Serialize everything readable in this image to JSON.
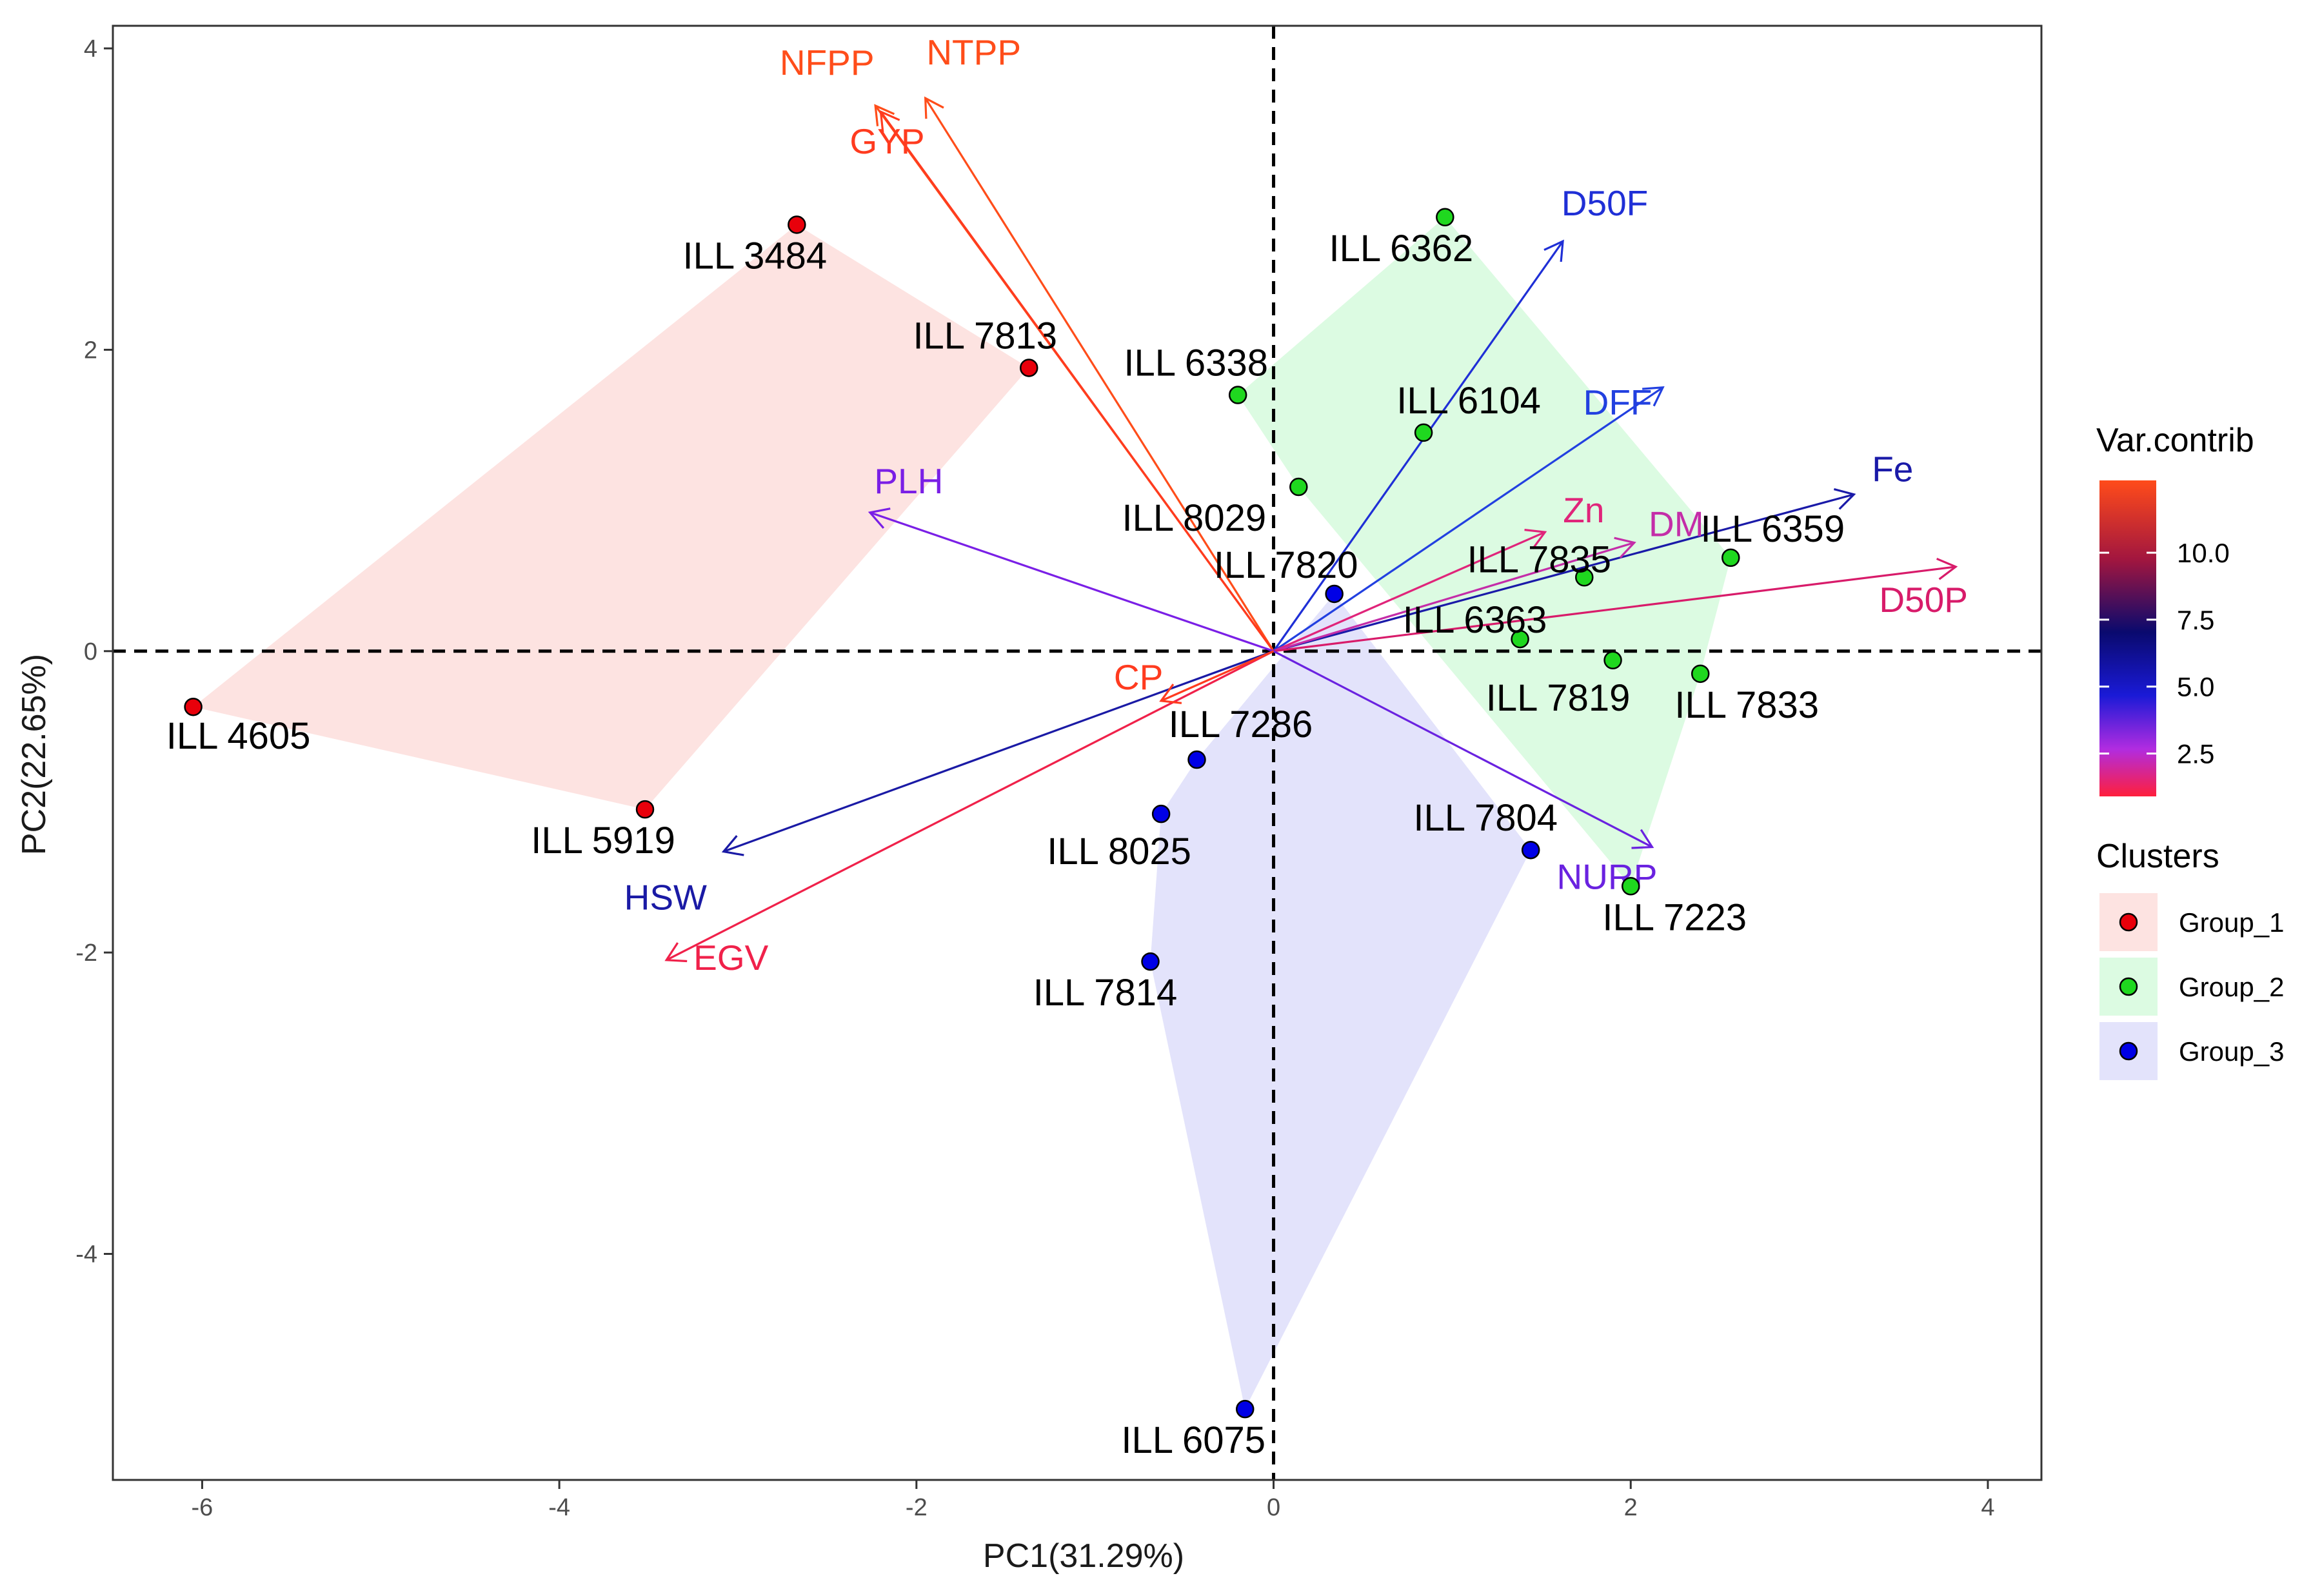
{
  "chart_data": {
    "type": "scatter",
    "subtype": "pca-biplot",
    "xlabel": "PC1(31.29%)",
    "ylabel": "PC2(22.65%)",
    "xlim": [
      -6.5,
      4.3
    ],
    "ylim": [
      -5.5,
      4.15
    ],
    "x_ticks": [
      -6,
      -4,
      -2,
      0,
      2,
      4
    ],
    "y_ticks": [
      -4,
      -2,
      0,
      2,
      4
    ],
    "tick_labels_x": [
      "-6",
      "-4",
      "-2",
      "0",
      "2",
      "4"
    ],
    "tick_labels_y": [
      "-4",
      "-2",
      "0",
      "2",
      "4"
    ],
    "reference_lines": [
      {
        "axis": "x",
        "value": 0,
        "style": "dashed"
      },
      {
        "axis": "y",
        "value": 0,
        "style": "dashed"
      }
    ],
    "groups": [
      {
        "name": "Group_1",
        "color": "#e8000b",
        "fill": "#fde3e1"
      },
      {
        "name": "Group_2",
        "color": "#1fd81f",
        "fill": "#dcfbe2"
      },
      {
        "name": "Group_3",
        "color": "#0000e6",
        "fill": "#e3e3fb"
      }
    ],
    "points": [
      {
        "label": "ILL 3484",
        "x": -2.67,
        "y": 2.83,
        "group": "Group_1"
      },
      {
        "label": "ILL 7813",
        "x": -1.37,
        "y": 1.88,
        "group": "Group_1"
      },
      {
        "label": "ILL 4605",
        "x": -6.05,
        "y": -0.37,
        "group": "Group_1"
      },
      {
        "label": "ILL 5919",
        "x": -3.52,
        "y": -1.05,
        "group": "Group_1"
      },
      {
        "label": "ILL 6362",
        "x": 0.96,
        "y": 2.88,
        "group": "Group_2"
      },
      {
        "label": "ILL 6338",
        "x": -0.2,
        "y": 1.7,
        "group": "Group_2"
      },
      {
        "label": "ILL 6104",
        "x": 0.84,
        "y": 1.45,
        "group": "Group_2"
      },
      {
        "label": "ILL 8029",
        "x": 0.14,
        "y": 1.09,
        "group": "Group_2"
      },
      {
        "label": "ILL 7835",
        "x": 1.74,
        "y": 0.49,
        "group": "Group_2"
      },
      {
        "label": "ILL 6359",
        "x": 2.56,
        "y": 0.62,
        "group": "Group_2"
      },
      {
        "label": "ILL 6363",
        "x": 1.38,
        "y": 0.08,
        "group": "Group_2"
      },
      {
        "label": "ILL 7819",
        "x": 1.9,
        "y": -0.06,
        "group": "Group_2"
      },
      {
        "label": "ILL 7833",
        "x": 2.39,
        "y": -0.15,
        "group": "Group_2"
      },
      {
        "label": "ILL 7223",
        "x": 2.0,
        "y": -1.56,
        "group": "Group_2"
      },
      {
        "label": "ILL 7820",
        "x": 0.34,
        "y": 0.38,
        "group": "Group_3"
      },
      {
        "label": "ILL 7286",
        "x": -0.43,
        "y": -0.72,
        "group": "Group_3"
      },
      {
        "label": "ILL 8025",
        "x": -0.63,
        "y": -1.08,
        "group": "Group_3"
      },
      {
        "label": "ILL 7804",
        "x": 1.44,
        "y": -1.32,
        "group": "Group_3"
      },
      {
        "label": "ILL 7814",
        "x": -0.69,
        "y": -2.06,
        "group": "Group_3"
      },
      {
        "label": "ILL 6075",
        "x": -0.16,
        "y": -5.03,
        "group": "Group_3"
      }
    ],
    "hulls": [
      {
        "group": "Group_1",
        "vertices": [
          "ILL 3484",
          "ILL 7813",
          "ILL 5919",
          "ILL 4605"
        ]
      },
      {
        "group": "Group_2",
        "vertices": [
          "ILL 6362",
          "ILL 6359",
          "ILL 7833",
          "ILL 7223",
          "ILL 8029",
          "ILL 6338"
        ]
      },
      {
        "group": "Group_3",
        "vertices": [
          "ILL 7820",
          "ILL 7804",
          "ILL 6075",
          "ILL 7814",
          "ILL 8025",
          "ILL 7286"
        ]
      }
    ],
    "variables": [
      {
        "name": "NFPP",
        "x": -2.23,
        "y": 3.62,
        "contrib": 12.4,
        "color": "#ff4d1a"
      },
      {
        "name": "NTPP",
        "x": -1.95,
        "y": 3.67,
        "contrib": 12.0,
        "color": "#ff4d1a"
      },
      {
        "name": "GYP",
        "x": -2.2,
        "y": 3.58,
        "contrib": 12.2,
        "color": "#ff3b1f"
      },
      {
        "name": "D50F",
        "x": 1.62,
        "y": 2.72,
        "contrib": 6.3,
        "color": "#1f2fd6"
      },
      {
        "name": "DFF",
        "x": 2.18,
        "y": 1.75,
        "contrib": 5.8,
        "color": "#2240e0"
      },
      {
        "name": "Fe",
        "x": 3.25,
        "y": 1.04,
        "contrib": 7.2,
        "color": "#1a1aa8"
      },
      {
        "name": "Zn",
        "x": 1.52,
        "y": 0.79,
        "contrib": 2.0,
        "color": "#e0247a"
      },
      {
        "name": "DM",
        "x": 2.02,
        "y": 0.72,
        "contrib": 3.0,
        "color": "#c42da8"
      },
      {
        "name": "D50P",
        "x": 3.82,
        "y": 0.56,
        "contrib": 3.2,
        "color": "#d81b6a"
      },
      {
        "name": "NURP",
        "x": 2.12,
        "y": -1.3,
        "contrib": 4.0,
        "color": "#6a22e0"
      },
      {
        "name": "PLH",
        "x": -2.26,
        "y": 0.92,
        "contrib": 4.2,
        "color": "#7a1fe6"
      },
      {
        "name": "HSW",
        "x": -3.08,
        "y": -1.33,
        "contrib": 7.6,
        "color": "#1a1aa5"
      },
      {
        "name": "EGV",
        "x": -3.4,
        "y": -2.05,
        "contrib": 1.5,
        "color": "#f0214a"
      },
      {
        "name": "CP",
        "x": -0.63,
        "y": -0.33,
        "contrib": 11.5,
        "color": "#ff3b1f"
      }
    ],
    "legend": {
      "colorbar_title": "Var.contrib",
      "colorbar_ticks": [
        "10.0",
        "7.5",
        "5.0",
        "2.5"
      ],
      "colorbar_range": [
        0.9,
        12.7
      ],
      "colorbar_gradient_top_to_bottom": [
        "#ff4b1a",
        "#a2163f",
        "#0a0a6e",
        "#1a1ad6",
        "#b12ce0",
        "#ff1f3c"
      ],
      "clusters_title": "Clusters",
      "cluster_entries": [
        "Group_1",
        "Group_2",
        "Group_3"
      ],
      "placement": "right"
    }
  }
}
